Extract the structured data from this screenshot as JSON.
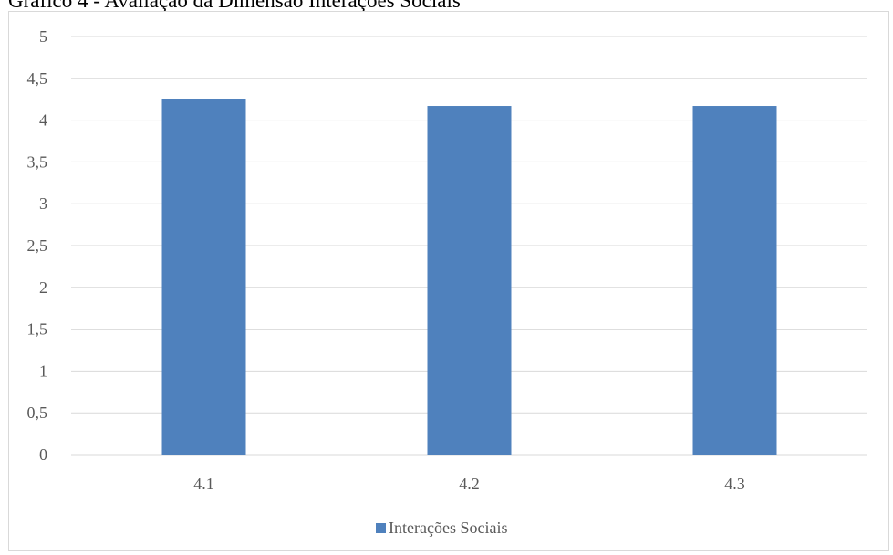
{
  "caption": "Gráfico 4 - Avaliação da Dimensão Interações Sociais",
  "chart_data": {
    "type": "bar",
    "categories": [
      "4.1",
      "4.2",
      "4.3"
    ],
    "series": [
      {
        "name": "Interações Sociais",
        "values": [
          4.25,
          4.17,
          4.17
        ],
        "color": "#4f81bd"
      }
    ],
    "ylim": [
      0,
      5
    ],
    "yticks": [
      "0",
      "0,5",
      "1",
      "1,5",
      "2",
      "2,5",
      "3",
      "3,5",
      "4",
      "4,5",
      "5"
    ],
    "ytick_values": [
      0,
      0.5,
      1,
      1.5,
      2,
      2.5,
      3,
      3.5,
      4,
      4.5,
      5
    ],
    "grid": true,
    "legend_position": "bottom",
    "gridline_color": "#d9d9d9"
  }
}
